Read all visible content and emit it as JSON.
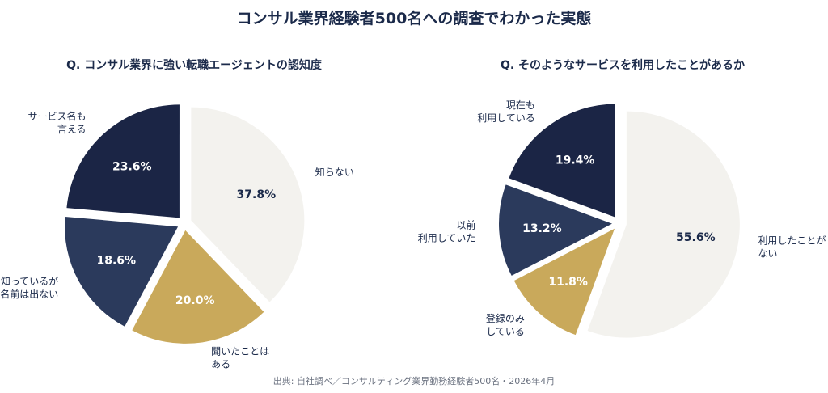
{
  "header": {
    "title": "コンサル業界経験者500名への調査でわかった実態"
  },
  "source": "出典: 自社調べ／コンサルティング業界勤務経験者500名・2026年4月",
  "chart_data": [
    {
      "type": "pie",
      "title": "Q. コンサル業界に強い転職エージェントの認知度",
      "slices": [
        {
          "label": [
            "知らない"
          ],
          "value": 37.8,
          "display": "37.8%",
          "color": "#f3f2ee",
          "text_color": "#1b2a4a"
        },
        {
          "label": [
            "聞いたことは",
            "ある"
          ],
          "value": 20.0,
          "display": "20.0%",
          "color": "#c9a95b",
          "text_color": "#ffffff"
        },
        {
          "label": [
            "知っているが",
            "名前は出ない"
          ],
          "value": 18.6,
          "display": "18.6%",
          "color": "#2b3a5c",
          "text_color": "#ffffff"
        },
        {
          "label": [
            "サービス名も",
            "言える"
          ],
          "value": 23.6,
          "display": "23.6%",
          "color": "#1b2545",
          "text_color": "#ffffff"
        }
      ]
    },
    {
      "type": "pie",
      "title": "Q. そのようなサービスを利用したことがあるか",
      "slices": [
        {
          "label": [
            "利用したことが",
            "ない"
          ],
          "value": 55.6,
          "display": "55.6%",
          "color": "#f3f2ee",
          "text_color": "#1b2a4a"
        },
        {
          "label": [
            "登録のみ",
            "している"
          ],
          "value": 11.8,
          "display": "11.8%",
          "color": "#c9a95b",
          "text_color": "#ffffff"
        },
        {
          "label": [
            "以前",
            "利用していた"
          ],
          "value": 13.2,
          "display": "13.2%",
          "color": "#2b3a5c",
          "text_color": "#ffffff"
        },
        {
          "label": [
            "現在も",
            "利用している"
          ],
          "value": 19.4,
          "display": "19.4%",
          "color": "#1b2545",
          "text_color": "#ffffff"
        }
      ]
    }
  ]
}
